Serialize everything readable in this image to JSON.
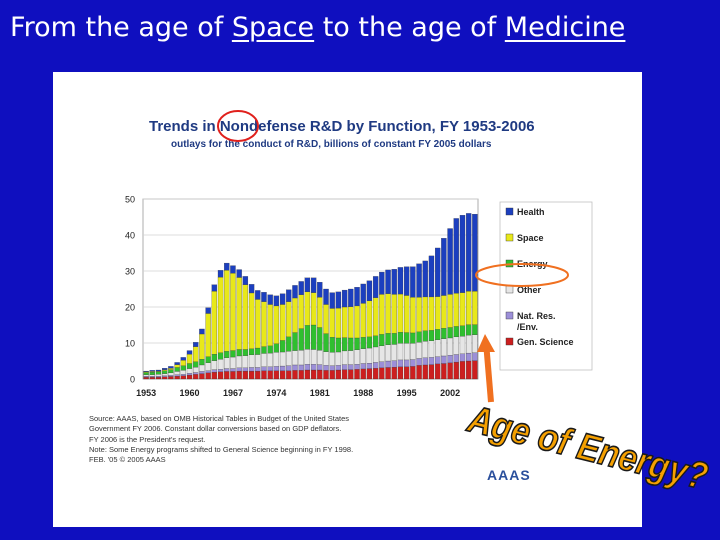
{
  "slide": {
    "title_parts": [
      "From the age of ",
      "Space",
      " to the age of ",
      "Medicine"
    ]
  },
  "annotation": {
    "text": "Age of Energy?",
    "color": "#f5a000"
  },
  "chart_data": {
    "type": "bar",
    "stacked": true,
    "title": "Trends in Nondefense R&D by Function, FY 1953-2006",
    "subtitle": "outlays for the conduct of R&D, billions of constant FY 2005 dollars",
    "ylim": [
      0,
      50
    ],
    "yticks": [
      0,
      10,
      20,
      30,
      40,
      50
    ],
    "x_tick_labels": [
      "1953",
      "1960",
      "1967",
      "1974",
      "1981",
      "1988",
      "1995",
      "2002"
    ],
    "grid": true,
    "legend_position": "right",
    "categories": [
      "1953",
      "1954",
      "1955",
      "1956",
      "1957",
      "1958",
      "1959",
      "1960",
      "1961",
      "1962",
      "1963",
      "1964",
      "1965",
      "1966",
      "1967",
      "1968",
      "1969",
      "1970",
      "1971",
      "1972",
      "1973",
      "1974",
      "1975",
      "1976",
      "1977",
      "1978",
      "1979",
      "1980",
      "1981",
      "1982",
      "1983",
      "1984",
      "1985",
      "1986",
      "1987",
      "1988",
      "1989",
      "1990",
      "1991",
      "1992",
      "1993",
      "1994",
      "1995",
      "1996",
      "1997",
      "1998",
      "1999",
      "2000",
      "2001",
      "2002",
      "2003",
      "2004",
      "2005",
      "2006"
    ],
    "series": [
      {
        "name": "Gen. Science",
        "color": "#cc1f1f",
        "values": [
          0.5,
          0.5,
          0.5,
          0.6,
          0.7,
          0.8,
          0.9,
          1.1,
          1.3,
          1.5,
          1.7,
          1.9,
          2.0,
          2.1,
          2.1,
          2.2,
          2.2,
          2.2,
          2.2,
          2.3,
          2.3,
          2.3,
          2.3,
          2.3,
          2.4,
          2.4,
          2.5,
          2.5,
          2.5,
          2.4,
          2.4,
          2.5,
          2.6,
          2.6,
          2.7,
          2.8,
          2.9,
          3.0,
          3.1,
          3.2,
          3.3,
          3.4,
          3.4,
          3.5,
          3.8,
          3.9,
          4.0,
          4.2,
          4.3,
          4.5,
          4.7,
          4.9,
          5.0,
          5.1
        ]
      },
      {
        "name": "Nat. Res. /Env.",
        "color": "#9c8fd8",
        "values": [
          0.3,
          0.3,
          0.3,
          0.3,
          0.3,
          0.4,
          0.4,
          0.5,
          0.5,
          0.6,
          0.6,
          0.7,
          0.7,
          0.8,
          0.8,
          0.9,
          0.9,
          1.0,
          1.0,
          1.1,
          1.1,
          1.2,
          1.3,
          1.4,
          1.5,
          1.5,
          1.6,
          1.6,
          1.5,
          1.4,
          1.3,
          1.3,
          1.4,
          1.4,
          1.4,
          1.5,
          1.5,
          1.6,
          1.7,
          1.8,
          1.8,
          1.9,
          1.9,
          1.9,
          1.9,
          2.0,
          2.0,
          2.0,
          2.1,
          2.1,
          2.1,
          2.1,
          2.2,
          2.2
        ]
      },
      {
        "name": "Other",
        "color": "#e6e6e6",
        "values": [
          0.4,
          0.4,
          0.5,
          0.6,
          0.7,
          0.9,
          1.1,
          1.3,
          1.5,
          1.8,
          2.2,
          2.5,
          2.8,
          3.0,
          3.2,
          3.3,
          3.4,
          3.5,
          3.6,
          3.7,
          3.8,
          3.9,
          3.9,
          4.0,
          4.0,
          4.1,
          4.2,
          4.1,
          4.0,
          3.8,
          3.7,
          3.7,
          3.8,
          3.9,
          4.0,
          4.1,
          4.2,
          4.3,
          4.4,
          4.5,
          4.5,
          4.6,
          4.6,
          4.5,
          4.5,
          4.6,
          4.6,
          4.7,
          4.8,
          4.8,
          4.9,
          4.9,
          5.0,
          5.0
        ]
      },
      {
        "name": "Energy",
        "color": "#2fbf2f",
        "values": [
          0.6,
          0.7,
          0.7,
          0.8,
          0.9,
          1.1,
          1.3,
          1.4,
          1.5,
          1.6,
          1.7,
          1.8,
          1.8,
          1.8,
          1.8,
          1.8,
          1.7,
          1.7,
          1.8,
          1.9,
          2.0,
          2.4,
          3.2,
          4.0,
          5.0,
          6.0,
          6.6,
          6.8,
          6.3,
          5.0,
          4.2,
          3.9,
          3.7,
          3.5,
          3.3,
          3.2,
          3.1,
          3.1,
          3.2,
          3.2,
          3.1,
          3.1,
          3.0,
          2.9,
          2.9,
          2.9,
          2.9,
          2.9,
          2.9,
          2.9,
          2.9,
          2.9,
          2.9,
          2.8
        ]
      },
      {
        "name": "Space",
        "color": "#e8e81a",
        "values": [
          0.2,
          0.2,
          0.2,
          0.3,
          0.4,
          0.8,
          1.5,
          2.6,
          4.2,
          7.0,
          12.0,
          17.5,
          21.0,
          22.5,
          21.5,
          20.0,
          18.0,
          15.5,
          13.5,
          12.5,
          11.5,
          10.5,
          10.0,
          9.8,
          9.6,
          9.4,
          9.3,
          9.0,
          8.4,
          8.1,
          8.0,
          8.3,
          8.5,
          8.7,
          8.9,
          9.4,
          10.0,
          10.6,
          11.1,
          11.0,
          10.8,
          10.6,
          10.3,
          9.9,
          9.6,
          9.4,
          9.3,
          9.1,
          9.1,
          9.2,
          9.2,
          9.2,
          9.3,
          9.3
        ]
      },
      {
        "name": "Health",
        "color": "#1c3fbf",
        "values": [
          0.2,
          0.3,
          0.3,
          0.4,
          0.5,
          0.6,
          0.8,
          1.0,
          1.2,
          1.4,
          1.6,
          1.8,
          1.9,
          2.0,
          2.1,
          2.2,
          2.3,
          2.4,
          2.5,
          2.6,
          2.7,
          2.8,
          3.0,
          3.3,
          3.5,
          3.7,
          3.9,
          4.1,
          4.2,
          4.3,
          4.4,
          4.5,
          4.7,
          4.9,
          5.2,
          5.4,
          5.6,
          5.9,
          6.2,
          6.6,
          7.0,
          7.4,
          8.0,
          8.5,
          9.3,
          10.0,
          11.4,
          13.5,
          15.9,
          18.3,
          20.8,
          21.5,
          21.6,
          21.4
        ]
      }
    ],
    "source_lines": [
      "Source: AAAS, based on OMB Historical Tables in Budget of the United States",
      "Government FY 2006.  Constant dollar conversions based on  GDP deflators.",
      "FY 2006 is the President's request.",
      "Note:  Some Energy programs shifted to General Science beginning in FY 1998.",
      "FEB. '05 © 2005 AAAS"
    ],
    "logo_text": "AAAS",
    "highlight_color": "#e0201c",
    "legend_highlight_color": "#f07020"
  }
}
